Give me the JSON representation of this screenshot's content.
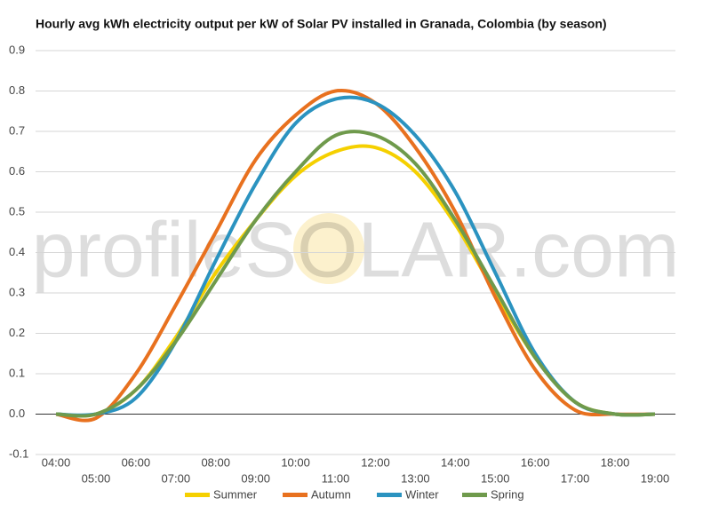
{
  "chart_data": {
    "type": "line",
    "title": "Hourly avg kWh electricity output per kW of Solar PV installed in Granada, Colombia (by season)",
    "watermark": "profileSOLAR.com",
    "categories": [
      "04:00",
      "05:00",
      "06:00",
      "07:00",
      "08:00",
      "09:00",
      "10:00",
      "11:00",
      "12:00",
      "13:00",
      "14:00",
      "15:00",
      "16:00",
      "17:00",
      "18:00",
      "19:00"
    ],
    "series": [
      {
        "name": "Summer",
        "color": "#f5d000",
        "values": [
          0,
          0,
          0.06,
          0.19,
          0.35,
          0.48,
          0.59,
          0.65,
          0.66,
          0.6,
          0.47,
          0.3,
          0.14,
          0.03,
          0,
          0
        ]
      },
      {
        "name": "Autumn",
        "color": "#e8711f",
        "values": [
          0,
          -0.01,
          0.1,
          0.27,
          0.45,
          0.63,
          0.74,
          0.8,
          0.77,
          0.66,
          0.5,
          0.29,
          0.11,
          0.01,
          0,
          0
        ]
      },
      {
        "name": "Winter",
        "color": "#2b93c0",
        "values": [
          0,
          0,
          0.04,
          0.18,
          0.38,
          0.57,
          0.72,
          0.78,
          0.77,
          0.69,
          0.55,
          0.35,
          0.15,
          0.03,
          0,
          0
        ]
      },
      {
        "name": "Spring",
        "color": "#6f9a4c",
        "values": [
          0,
          0,
          0.06,
          0.18,
          0.33,
          0.48,
          0.6,
          0.69,
          0.69,
          0.62,
          0.48,
          0.31,
          0.14,
          0.03,
          0,
          0
        ]
      }
    ],
    "ylim": [
      -0.1,
      0.9
    ],
    "yticks": [
      -0.1,
      {
        "value": 0,
        "label": "0.0"
      },
      0.1,
      0.2,
      0.3,
      0.4,
      0.5,
      0.6,
      0.7,
      0.8,
      0.9
    ],
    "grid": true,
    "legend": "bottom"
  }
}
